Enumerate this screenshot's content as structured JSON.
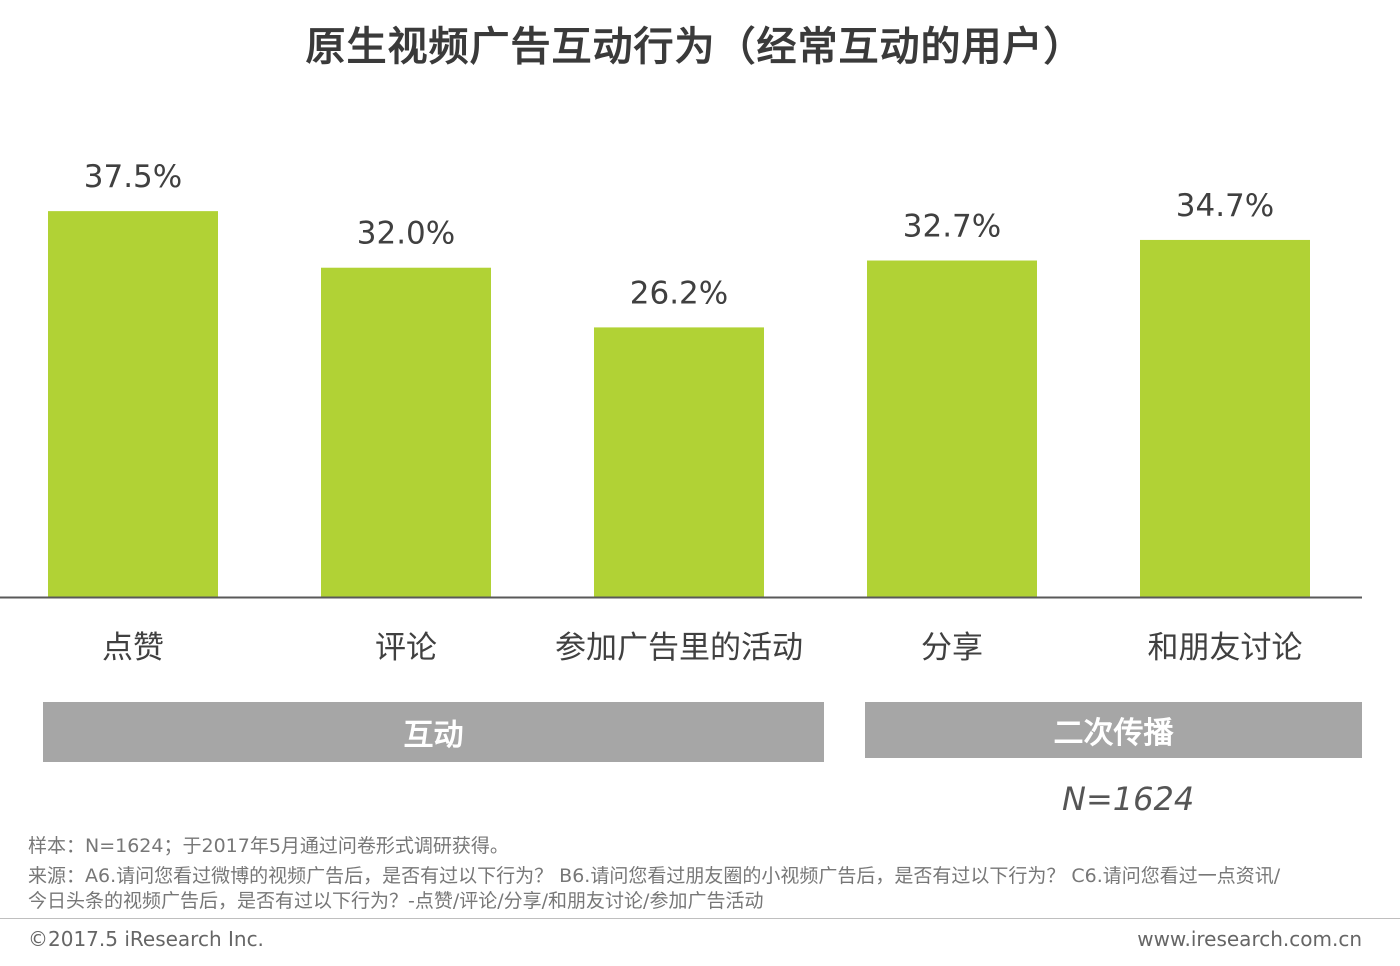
{
  "title": "原生视频广告互动行为（经常互动的用户）",
  "chart_data": {
    "type": "bar",
    "title": "原生视频广告互动行为（经常互动的用户）",
    "categories": [
      "点赞",
      "评论",
      "参加广告里的活动",
      "分享",
      "和朋友讨论"
    ],
    "values": [
      37.5,
      32.0,
      26.2,
      32.7,
      34.7
    ],
    "value_labels": [
      "37.5%",
      "32.0%",
      "26.2%",
      "32.7%",
      "34.7%"
    ],
    "unit": "%",
    "ylim": [
      0,
      40
    ],
    "grid": false,
    "legend": "none",
    "groups": [
      {
        "label": "互动",
        "categories": [
          "点赞",
          "评论",
          "参加广告里的活动"
        ]
      },
      {
        "label": "二次传播",
        "categories": [
          "分享",
          "和朋友讨论"
        ]
      }
    ],
    "bar_color": "#b1d235"
  },
  "groups": {
    "hudong": "互动",
    "chuanbo": "二次传播"
  },
  "sample_size": "N=1624",
  "notes": {
    "sample": "样本：N=1624；于2017年5月通过问卷形式调研获得。",
    "source_line1": "来源：A6.请问您看过微博的视频广告后，是否有过以下行为？ B6.请问您看过朋友圈的小视频广告后，是否有过以下行为？ C6.请问您看过一点资讯/",
    "source_line2": "今日头条的视频广告后，是否有过以下行为？-点赞/评论/分享/和朋友讨论/参加广告活动"
  },
  "footer": {
    "copyright": "©2017.5 iResearch Inc.",
    "website": "www.iresearch.com.cn"
  }
}
